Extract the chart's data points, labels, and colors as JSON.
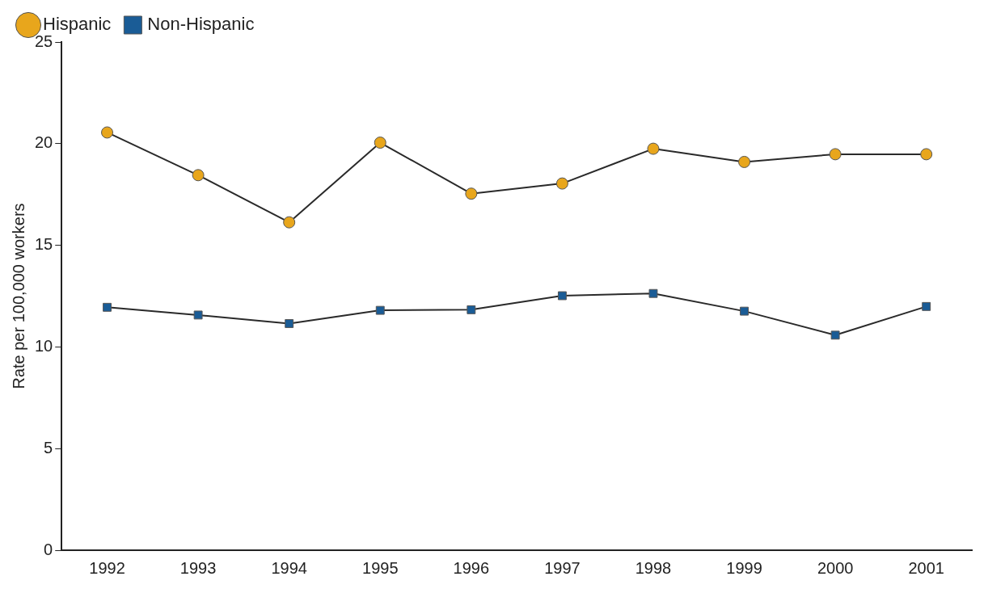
{
  "chart_data": {
    "type": "line",
    "ylabel": "Rate per 100,000 workers",
    "categories": [
      "1992",
      "1993",
      "1994",
      "1995",
      "1996",
      "1997",
      "1998",
      "1999",
      "2000",
      "2001"
    ],
    "series": [
      {
        "name": "Hispanic",
        "color": "#e8a61c",
        "marker": "circle",
        "values": [
          20.55,
          18.45,
          16.13,
          20.05,
          17.54,
          18.04,
          19.75,
          19.1,
          19.48,
          19.48
        ]
      },
      {
        "name": "Non-Hispanic",
        "color": "#1a5c96",
        "marker": "square",
        "values": [
          11.95,
          11.57,
          11.15,
          11.8,
          11.83,
          12.52,
          12.63,
          11.76,
          10.58,
          11.99
        ]
      }
    ],
    "ylim": [
      0,
      25
    ],
    "yticks": [
      0,
      5,
      10,
      15,
      20,
      25
    ],
    "grid": false,
    "legend": "top left",
    "line_style": "solid"
  }
}
